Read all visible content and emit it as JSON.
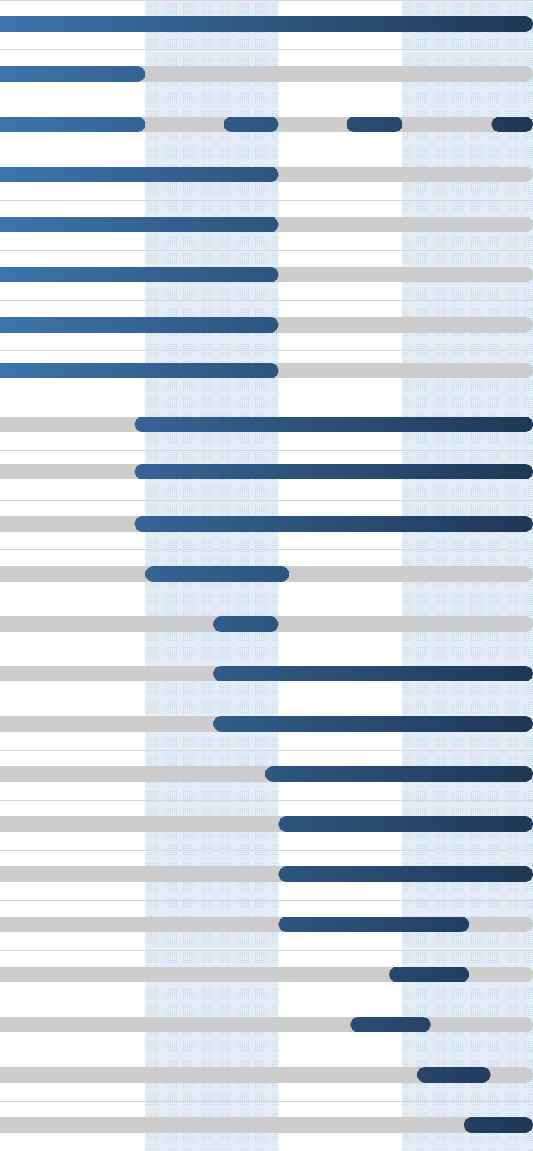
{
  "chart_data": {
    "type": "bar",
    "subtype": "timeline-range",
    "title": "",
    "xlabel": "",
    "ylabel": "",
    "grid": true,
    "legend": "none",
    "colors": {
      "track": "#cccccc",
      "bar_start": "#3c74aa",
      "bar_end": "#1f3856",
      "band_shade": "#e3edf7",
      "gridline": "#d8d8d8"
    },
    "x_range": [
      0,
      4
    ],
    "shaded_periods": [
      [
        1.09,
        2.09
      ],
      [
        3.02,
        4.03
      ]
    ],
    "rows": [
      {
        "segments": [
          [
            0.0,
            4.0
          ]
        ]
      },
      {
        "segments": [
          [
            0.0,
            1.09
          ]
        ]
      },
      {
        "segments": [
          [
            0.0,
            1.09
          ],
          [
            1.68,
            2.09
          ],
          [
            2.6,
            3.02
          ],
          [
            3.69,
            4.0
          ]
        ]
      },
      {
        "segments": [
          [
            0.0,
            2.09
          ]
        ]
      },
      {
        "segments": [
          [
            0.0,
            2.09
          ]
        ]
      },
      {
        "segments": [
          [
            0.0,
            2.09
          ]
        ]
      },
      {
        "segments": [
          [
            0.0,
            2.09
          ]
        ]
      },
      {
        "segments": [
          [
            0.0,
            2.09
          ]
        ]
      },
      {
        "segments": [
          [
            1.01,
            4.0
          ]
        ]
      },
      {
        "segments": [
          [
            1.01,
            4.0
          ]
        ]
      },
      {
        "segments": [
          [
            1.01,
            4.0
          ]
        ]
      },
      {
        "segments": [
          [
            1.09,
            2.17
          ]
        ]
      },
      {
        "segments": [
          [
            1.6,
            2.09
          ]
        ]
      },
      {
        "segments": [
          [
            1.6,
            4.0
          ]
        ]
      },
      {
        "segments": [
          [
            1.6,
            4.0
          ]
        ]
      },
      {
        "segments": [
          [
            1.99,
            4.0
          ]
        ]
      },
      {
        "segments": [
          [
            2.09,
            4.0
          ]
        ]
      },
      {
        "segments": [
          [
            2.09,
            4.0
          ]
        ]
      },
      {
        "segments": [
          [
            2.09,
            3.52
          ]
        ]
      },
      {
        "segments": [
          [
            2.92,
            3.52
          ]
        ]
      },
      {
        "segments": [
          [
            2.63,
            3.23
          ]
        ]
      },
      {
        "segments": [
          [
            3.13,
            3.68
          ]
        ]
      },
      {
        "segments": [
          [
            3.48,
            4.0
          ]
        ]
      }
    ]
  }
}
